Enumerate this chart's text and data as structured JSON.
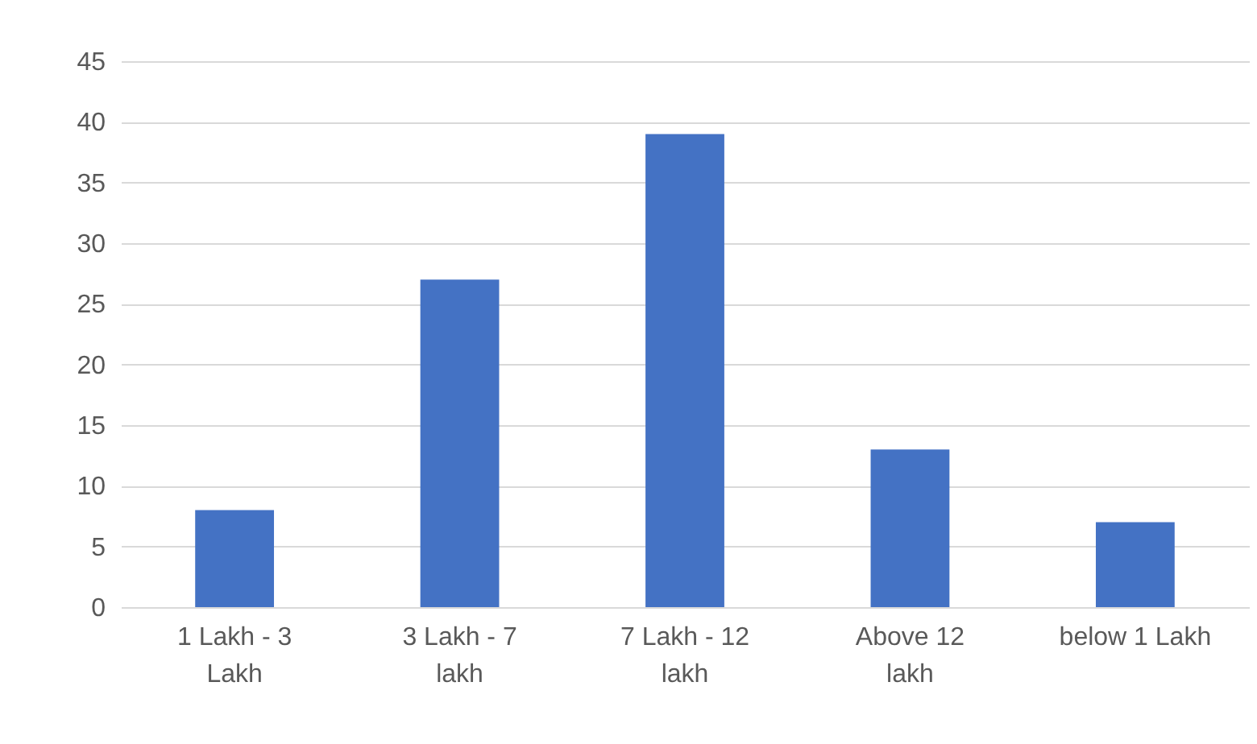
{
  "chart_data": {
    "type": "bar",
    "categories": [
      "1 Lakh - 3 Lakh",
      "3 Lakh - 7 lakh",
      "7 Lakh - 12 lakh",
      "Above 12 lakh",
      "below 1 Lakh"
    ],
    "values": [
      8,
      27,
      39,
      13,
      7
    ],
    "color": "#4472c4",
    "ylim": [
      0,
      45
    ],
    "yticks": [
      0,
      5,
      10,
      15,
      20,
      25,
      30,
      35,
      40,
      45
    ],
    "grid": "y"
  }
}
